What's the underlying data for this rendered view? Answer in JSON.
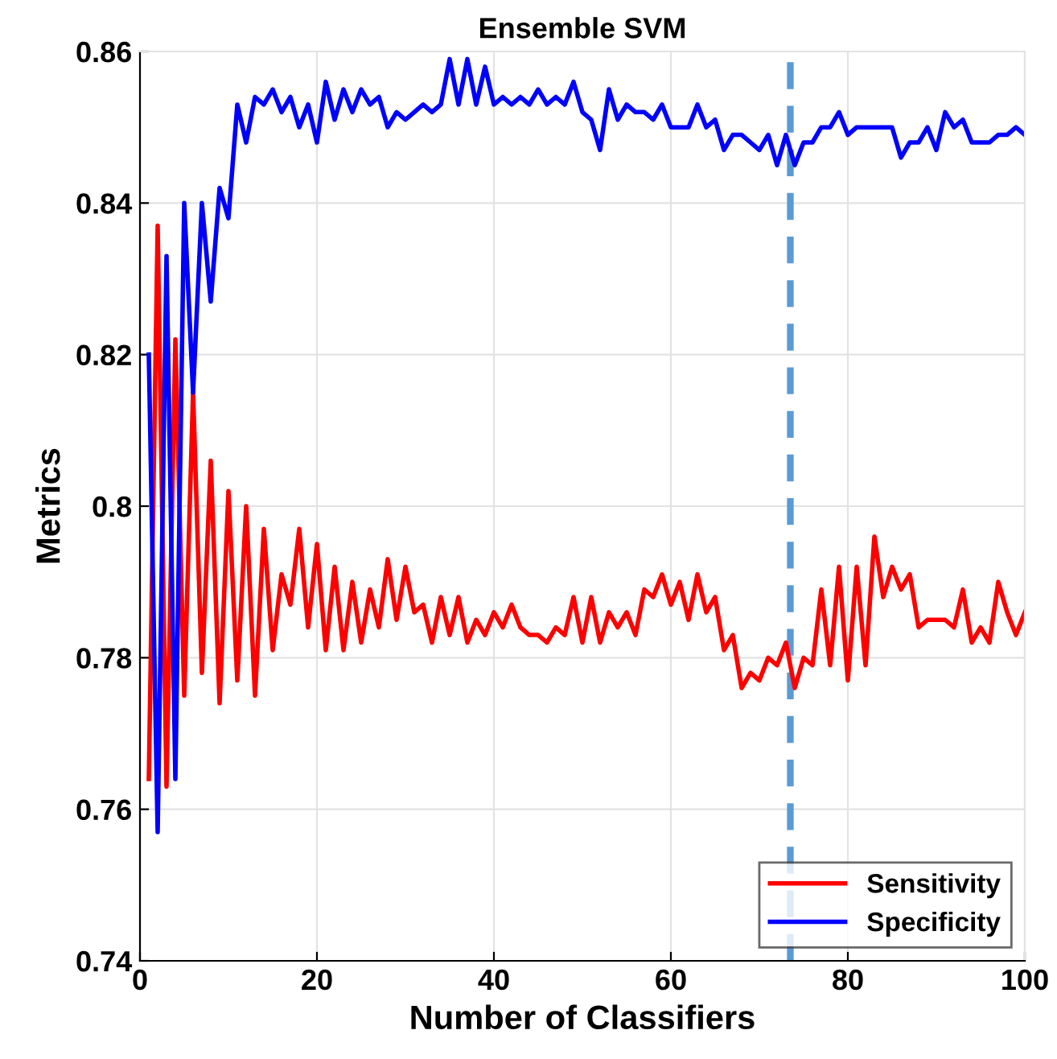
{
  "chart_data": {
    "type": "line",
    "title": "Ensemble SVM",
    "xlabel": "Number of Classifiers",
    "ylabel": "Metrics",
    "x": [
      1,
      2,
      3,
      4,
      5,
      6,
      7,
      8,
      9,
      10,
      11,
      12,
      13,
      14,
      15,
      16,
      17,
      18,
      19,
      20,
      21,
      22,
      23,
      24,
      25,
      26,
      27,
      28,
      29,
      30,
      31,
      32,
      33,
      34,
      35,
      36,
      37,
      38,
      39,
      40,
      41,
      42,
      43,
      44,
      45,
      46,
      47,
      48,
      49,
      50,
      51,
      52,
      53,
      54,
      55,
      56,
      57,
      58,
      59,
      60,
      61,
      62,
      63,
      64,
      65,
      66,
      67,
      68,
      69,
      70,
      71,
      72,
      73,
      74,
      75,
      76,
      77,
      78,
      79,
      80,
      81,
      82,
      83,
      84,
      85,
      86,
      87,
      88,
      89,
      90,
      91,
      92,
      93,
      94,
      95,
      96,
      97,
      98,
      99,
      100
    ],
    "series": [
      {
        "name": "Sensitivity",
        "color": "#ff0000",
        "values": [
          0.764,
          0.837,
          0.763,
          0.822,
          0.775,
          0.815,
          0.778,
          0.806,
          0.774,
          0.802,
          0.777,
          0.8,
          0.775,
          0.797,
          0.781,
          0.791,
          0.787,
          0.797,
          0.784,
          0.795,
          0.781,
          0.792,
          0.781,
          0.79,
          0.782,
          0.789,
          0.784,
          0.793,
          0.785,
          0.792,
          0.786,
          0.787,
          0.782,
          0.788,
          0.783,
          0.788,
          0.782,
          0.785,
          0.783,
          0.786,
          0.784,
          0.787,
          0.784,
          0.783,
          0.783,
          0.782,
          0.784,
          0.783,
          0.788,
          0.782,
          0.788,
          0.782,
          0.786,
          0.784,
          0.786,
          0.783,
          0.789,
          0.788,
          0.791,
          0.787,
          0.79,
          0.785,
          0.791,
          0.786,
          0.788,
          0.781,
          0.783,
          0.776,
          0.778,
          0.777,
          0.78,
          0.779,
          0.782,
          0.776,
          0.78,
          0.779,
          0.789,
          0.779,
          0.792,
          0.777,
          0.792,
          0.779,
          0.796,
          0.788,
          0.792,
          0.789,
          0.791,
          0.784,
          0.785,
          0.785,
          0.785,
          0.784,
          0.789,
          0.782,
          0.784,
          0.782,
          0.79,
          0.786,
          0.783,
          0.786
        ]
      },
      {
        "name": "Specificity",
        "color": "#0000ff",
        "values": [
          0.82,
          0.757,
          0.833,
          0.764,
          0.84,
          0.815,
          0.84,
          0.827,
          0.842,
          0.838,
          0.853,
          0.848,
          0.854,
          0.853,
          0.855,
          0.852,
          0.854,
          0.85,
          0.853,
          0.848,
          0.856,
          0.851,
          0.855,
          0.852,
          0.855,
          0.853,
          0.854,
          0.85,
          0.852,
          0.851,
          0.852,
          0.853,
          0.852,
          0.853,
          0.859,
          0.853,
          0.859,
          0.853,
          0.858,
          0.853,
          0.854,
          0.853,
          0.854,
          0.853,
          0.855,
          0.853,
          0.854,
          0.853,
          0.856,
          0.852,
          0.851,
          0.847,
          0.855,
          0.851,
          0.853,
          0.852,
          0.852,
          0.851,
          0.853,
          0.85,
          0.85,
          0.85,
          0.853,
          0.85,
          0.851,
          0.847,
          0.849,
          0.849,
          0.848,
          0.847,
          0.849,
          0.845,
          0.849,
          0.845,
          0.848,
          0.848,
          0.85,
          0.85,
          0.852,
          0.849,
          0.85,
          0.85,
          0.85,
          0.85,
          0.85,
          0.846,
          0.848,
          0.848,
          0.85,
          0.847,
          0.852,
          0.85,
          0.851,
          0.848,
          0.848,
          0.848,
          0.849,
          0.849,
          0.85,
          0.849
        ]
      }
    ],
    "xlim": [
      0,
      100
    ],
    "xticks": [
      0,
      20,
      40,
      60,
      80,
      100
    ],
    "ylim": [
      0.74,
      0.86
    ],
    "yticks": [
      0.74,
      0.76,
      0.78,
      {
        "value": 0.8,
        "label": "0.8"
      },
      0.82,
      0.84,
      0.86
    ],
    "ref_lines": [
      {
        "axis": "x",
        "value": 73.5,
        "color": "#5b9bd5",
        "line_style": "dashed"
      }
    ],
    "grid": true,
    "legend": "bottom right"
  }
}
